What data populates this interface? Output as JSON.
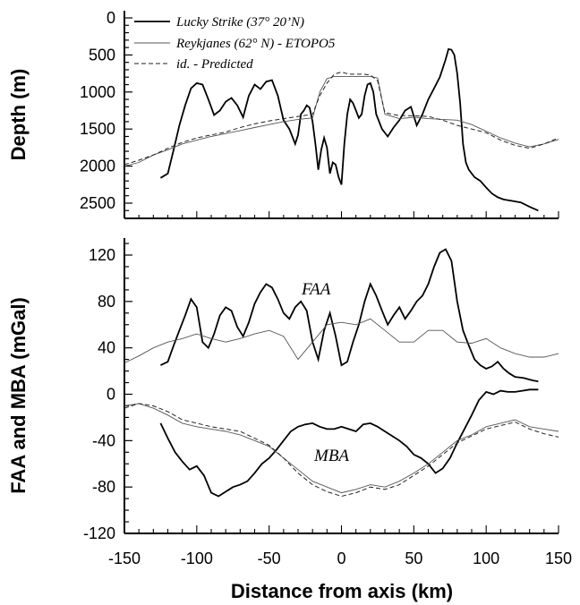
{
  "chart_data": [
    {
      "type": "line",
      "xlim": [
        -150,
        150
      ],
      "ylim": [
        2650,
        0
      ],
      "y_axis_inverted": true,
      "ylabel": "Depth (m)",
      "yticks": [
        0,
        500,
        1000,
        1500,
        2000,
        2500
      ],
      "grid": false,
      "legend_position": "top",
      "series": [
        {
          "name": "Lucky Strike (37° 20’N)",
          "style": "solid-thick",
          "x": [
            -125,
            -120,
            -116,
            -112,
            -108,
            -104,
            -100,
            -96,
            -92,
            -88,
            -84,
            -80,
            -76,
            -72,
            -68,
            -64,
            -60,
            -56,
            -52,
            -48,
            -44,
            -40,
            -36,
            -32,
            -30,
            -28,
            -26,
            -24,
            -22,
            -20,
            -18,
            -16,
            -14,
            -12,
            -10,
            -8,
            -6,
            -4,
            -2,
            0,
            2,
            4,
            6,
            8,
            10,
            12,
            14,
            16,
            18,
            20,
            22,
            24,
            28,
            32,
            36,
            40,
            44,
            48,
            52,
            56,
            60,
            64,
            68,
            72,
            74,
            76,
            78,
            80,
            82,
            84,
            86,
            88,
            92,
            96,
            100,
            104,
            108,
            112,
            118,
            124,
            130,
            136
          ],
          "y": [
            2160,
            2100,
            1780,
            1450,
            1180,
            950,
            880,
            900,
            1100,
            1310,
            1250,
            1130,
            1080,
            1180,
            1340,
            1050,
            900,
            960,
            860,
            840,
            1050,
            1380,
            1500,
            1700,
            1580,
            1300,
            1250,
            1180,
            1210,
            1400,
            1700,
            2050,
            1780,
            1620,
            1750,
            2100,
            1950,
            1980,
            2150,
            2250,
            1700,
            1300,
            1100,
            1150,
            1250,
            1350,
            1300,
            1050,
            900,
            880,
            1000,
            1300,
            1500,
            1600,
            1480,
            1380,
            1250,
            1200,
            1450,
            1300,
            1100,
            950,
            800,
            560,
            420,
            430,
            500,
            750,
            1150,
            1700,
            1950,
            2050,
            2150,
            2200,
            2290,
            2370,
            2420,
            2450,
            2470,
            2490,
            2550,
            2600
          ]
        },
        {
          "name": "Reykjanes (62° N) - ETOPO5",
          "style": "thin-gray",
          "x": [
            -150,
            -140,
            -130,
            -120,
            -110,
            -100,
            -90,
            -80,
            -70,
            -60,
            -50,
            -40,
            -30,
            -20,
            -15,
            -10,
            -5,
            0,
            5,
            10,
            15,
            20,
            25,
            30,
            40,
            50,
            60,
            70,
            80,
            90,
            100,
            110,
            120,
            130,
            140,
            150
          ],
          "y": [
            2000,
            1950,
            1850,
            1780,
            1700,
            1650,
            1600,
            1560,
            1520,
            1480,
            1440,
            1400,
            1370,
            1350,
            1000,
            820,
            790,
            790,
            790,
            790,
            790,
            790,
            810,
            1300,
            1360,
            1340,
            1360,
            1370,
            1380,
            1440,
            1530,
            1620,
            1690,
            1740,
            1700,
            1640
          ]
        },
        {
          "name": "id. - Predicted",
          "style": "dashed",
          "x": [
            -150,
            -140,
            -130,
            -120,
            -110,
            -100,
            -90,
            -80,
            -70,
            -60,
            -50,
            -40,
            -30,
            -20,
            -15,
            -10,
            -5,
            0,
            5,
            10,
            15,
            20,
            25,
            30,
            40,
            50,
            60,
            70,
            80,
            90,
            100,
            110,
            120,
            130,
            140,
            150
          ],
          "y": [
            1980,
            1920,
            1850,
            1760,
            1680,
            1620,
            1580,
            1540,
            1480,
            1430,
            1390,
            1360,
            1330,
            1300,
            1050,
            880,
            760,
            730,
            760,
            760,
            760,
            770,
            850,
            1280,
            1320,
            1320,
            1330,
            1380,
            1450,
            1500,
            1550,
            1650,
            1720,
            1760,
            1700,
            1620
          ]
        }
      ]
    },
    {
      "type": "line",
      "xlim": [
        -150,
        150
      ],
      "ylim": [
        -120,
        130
      ],
      "xlabel": "Distance from axis (km)",
      "ylabel": "FAA and MBA (mGal)",
      "xticks": [
        -150,
        -100,
        -50,
        0,
        50,
        100,
        150
      ],
      "yticks": [
        120,
        80,
        40,
        0,
        -40,
        -80,
        -120
      ],
      "grid": false,
      "annotations": [
        {
          "text": "FAA",
          "x": -18,
          "y": 90
        },
        {
          "text": "MBA",
          "x": -18,
          "y": -55
        }
      ],
      "series": [
        {
          "name": "Lucky Strike FAA",
          "style": "solid-thick",
          "x": [
            -125,
            -120,
            -116,
            -112,
            -108,
            -104,
            -100,
            -96,
            -92,
            -88,
            -84,
            -80,
            -76,
            -72,
            -68,
            -64,
            -60,
            -56,
            -52,
            -48,
            -44,
            -40,
            -36,
            -32,
            -28,
            -24,
            -20,
            -16,
            -12,
            -8,
            -4,
            0,
            4,
            8,
            12,
            16,
            20,
            24,
            28,
            32,
            36,
            40,
            44,
            48,
            52,
            56,
            60,
            64,
            68,
            72,
            76,
            80,
            84,
            88,
            92,
            96,
            100,
            104,
            108,
            112,
            116,
            120,
            126,
            132,
            136
          ],
          "y": [
            25,
            28,
            42,
            55,
            68,
            82,
            75,
            45,
            40,
            52,
            68,
            75,
            72,
            58,
            50,
            62,
            78,
            88,
            95,
            92,
            82,
            70,
            65,
            75,
            80,
            72,
            45,
            30,
            55,
            70,
            50,
            25,
            28,
            45,
            60,
            80,
            95,
            85,
            72,
            60,
            68,
            75,
            65,
            72,
            80,
            85,
            95,
            110,
            122,
            125,
            115,
            80,
            55,
            42,
            30,
            25,
            22,
            24,
            28,
            22,
            18,
            15,
            14,
            12,
            11
          ]
        },
        {
          "name": "Reykjanes FAA",
          "style": "thin-gray",
          "x": [
            -150,
            -140,
            -130,
            -120,
            -110,
            -100,
            -90,
            -80,
            -70,
            -60,
            -50,
            -40,
            -30,
            -20,
            -10,
            0,
            10,
            20,
            30,
            40,
            50,
            60,
            70,
            80,
            90,
            100,
            110,
            120,
            130,
            140,
            150
          ],
          "y": [
            27,
            33,
            40,
            45,
            48,
            52,
            48,
            45,
            48,
            52,
            55,
            50,
            30,
            45,
            60,
            62,
            60,
            65,
            55,
            45,
            45,
            55,
            55,
            45,
            44,
            48,
            40,
            35,
            32,
            32,
            35
          ]
        },
        {
          "name": "Lucky Strike MBA",
          "style": "solid-thick",
          "x": [
            -125,
            -120,
            -115,
            -110,
            -105,
            -100,
            -95,
            -90,
            -85,
            -80,
            -75,
            -70,
            -65,
            -60,
            -55,
            -50,
            -45,
            -40,
            -35,
            -30,
            -25,
            -20,
            -15,
            -10,
            -5,
            0,
            5,
            10,
            15,
            20,
            25,
            30,
            35,
            40,
            45,
            50,
            55,
            60,
            65,
            70,
            75,
            80,
            85,
            90,
            95,
            100,
            105,
            110,
            115,
            120,
            125,
            130,
            136
          ],
          "y": [
            -25,
            -38,
            -50,
            -58,
            -65,
            -62,
            -70,
            -85,
            -88,
            -84,
            -80,
            -78,
            -75,
            -68,
            -60,
            -55,
            -48,
            -40,
            -32,
            -28,
            -26,
            -25,
            -28,
            -30,
            -30,
            -28,
            -30,
            -32,
            -26,
            -25,
            -28,
            -32,
            -36,
            -40,
            -45,
            -52,
            -55,
            -60,
            -68,
            -64,
            -55,
            -42,
            -30,
            -18,
            -5,
            2,
            0,
            3,
            2,
            2,
            3,
            4,
            4
          ]
        },
        {
          "name": "Reykjanes MBA",
          "style": "thin-gray",
          "x": [
            -150,
            -140,
            -130,
            -120,
            -110,
            -100,
            -90,
            -80,
            -70,
            -60,
            -50,
            -40,
            -30,
            -20,
            -10,
            0,
            10,
            20,
            30,
            40,
            50,
            60,
            70,
            80,
            90,
            100,
            110,
            120,
            130,
            140,
            150
          ],
          "y": [
            -10,
            -8,
            -12,
            -18,
            -25,
            -28,
            -30,
            -32,
            -35,
            -40,
            -45,
            -55,
            -65,
            -75,
            -80,
            -85,
            -82,
            -78,
            -80,
            -75,
            -68,
            -60,
            -50,
            -40,
            -35,
            -28,
            -25,
            -22,
            -28,
            -30,
            -32
          ]
        },
        {
          "name": "Predicted MBA",
          "style": "dashed",
          "x": [
            -150,
            -140,
            -130,
            -120,
            -110,
            -100,
            -90,
            -80,
            -70,
            -60,
            -50,
            -40,
            -30,
            -20,
            -10,
            0,
            10,
            20,
            30,
            40,
            50,
            60,
            70,
            80,
            90,
            100,
            110,
            120,
            130,
            140,
            150
          ],
          "y": [
            -12,
            -8,
            -10,
            -15,
            -22,
            -25,
            -28,
            -30,
            -32,
            -38,
            -44,
            -55,
            -68,
            -78,
            -84,
            -88,
            -85,
            -80,
            -82,
            -78,
            -70,
            -62,
            -52,
            -42,
            -36,
            -30,
            -27,
            -24,
            -30,
            -34,
            -37
          ]
        }
      ]
    }
  ]
}
